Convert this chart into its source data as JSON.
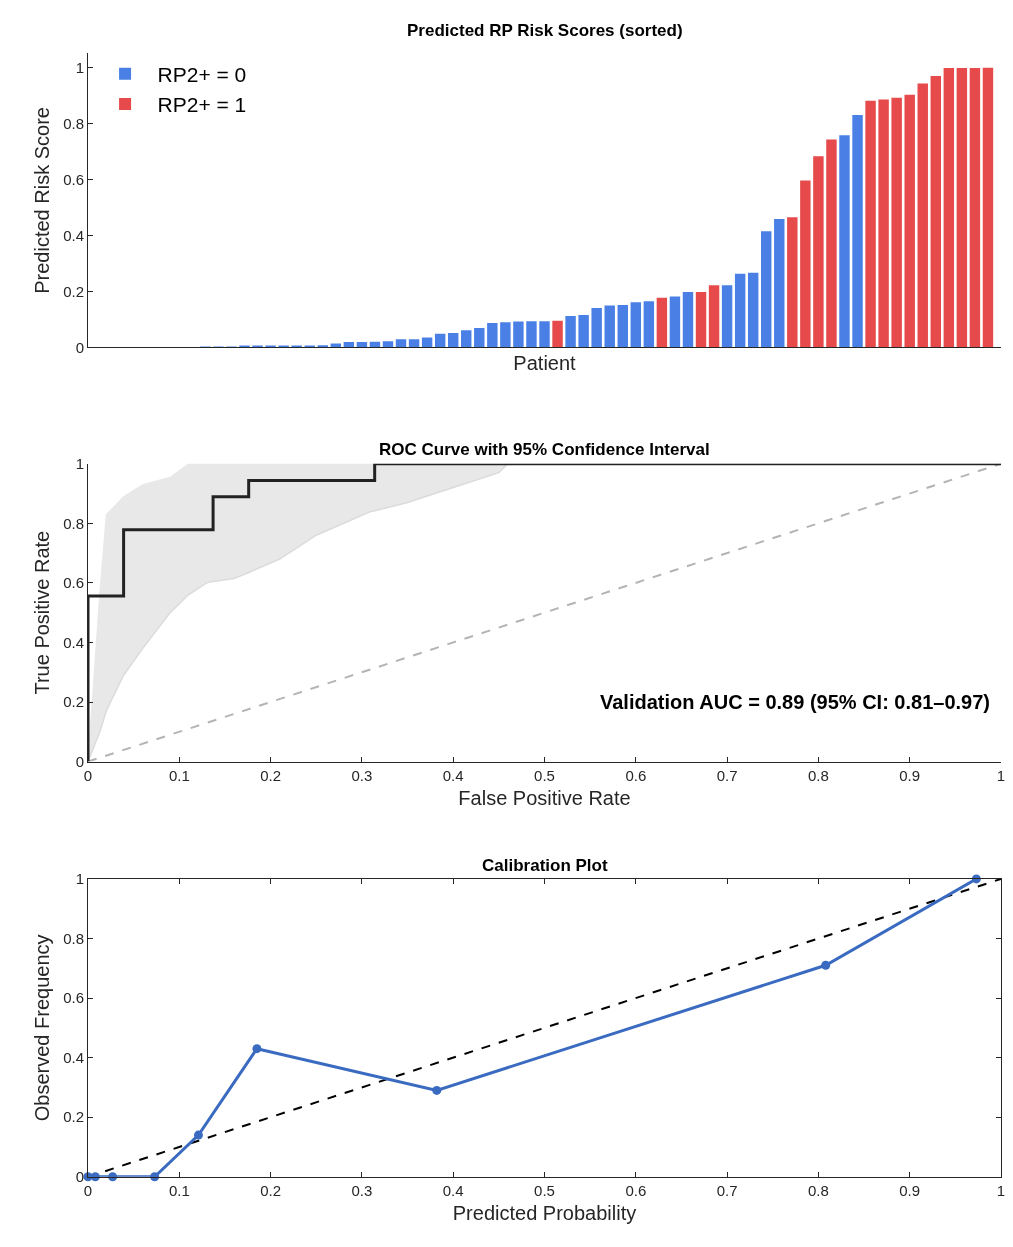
{
  "chart_data": [
    {
      "type": "bar",
      "title": "Predicted RP Risk Scores (sorted)",
      "xlabel": "Patient",
      "ylabel": "Predicted Risk Score",
      "categories": [
        null,
        null,
        null,
        null,
        null,
        null,
        null,
        null,
        null,
        null,
        null,
        null,
        null,
        null,
        null,
        null,
        null,
        null,
        null,
        null,
        null,
        null,
        null,
        null,
        null,
        null,
        null,
        null,
        null,
        null,
        null,
        null,
        null,
        null,
        null,
        null,
        null,
        null,
        null,
        null,
        null,
        null,
        null,
        null,
        null,
        null,
        null,
        null,
        null,
        null,
        null,
        null,
        null,
        null,
        null,
        null,
        null,
        null,
        null,
        null,
        null,
        null,
        null,
        null,
        null,
        null,
        null,
        null,
        null
      ],
      "series": [
        {
          "name": "RP2+ = 0",
          "color": "#4a80e6",
          "values": [
            0,
            0,
            0,
            0,
            0,
            0,
            0,
            0,
            0.002,
            0.003,
            0.003,
            0.004,
            0.004,
            0.005,
            0.005,
            0.005,
            0.006,
            0.008,
            0.014,
            0.019,
            0.019,
            0.02,
            0.022,
            0.029,
            0.029,
            0.035,
            0.049,
            0.051,
            0.061,
            0.069,
            0.087,
            0.09,
            0.092,
            0.093,
            0.093,
            null,
            0.112,
            0.116,
            0.141,
            0.15,
            0.151,
            0.161,
            0.165,
            null,
            0.182,
            0.198,
            null,
            null,
            0.222,
            0.263,
            0.267,
            0.415,
            0.459,
            null,
            null,
            null,
            null,
            0.758,
            0.83,
            null,
            null,
            null,
            null,
            null,
            null,
            null,
            null,
            null,
            null
          ]
        },
        {
          "name": "RP2+ = 1",
          "color": "#e64a4a",
          "values": [
            null,
            null,
            null,
            null,
            null,
            null,
            null,
            null,
            null,
            null,
            null,
            null,
            null,
            null,
            null,
            null,
            null,
            null,
            null,
            null,
            null,
            null,
            null,
            null,
            null,
            null,
            null,
            null,
            null,
            null,
            null,
            null,
            null,
            null,
            null,
            0.095,
            null,
            null,
            null,
            null,
            null,
            null,
            null,
            0.177,
            null,
            null,
            0.198,
            0.222,
            null,
            null,
            null,
            null,
            null,
            0.465,
            0.596,
            0.683,
            0.743,
            null,
            null,
            0.881,
            0.886,
            0.892,
            0.903,
            0.943,
            0.97,
            0.998,
            0.998,
            0.998,
            0.999
          ]
        }
      ],
      "ylim": [
        0,
        1.05
      ],
      "yticks": [
        0,
        0.2,
        0.4,
        0.6,
        0.8,
        1
      ],
      "tick_labels": "y",
      "legend": "top left",
      "grid": false
    },
    {
      "type": "line",
      "title": "ROC Curve with 95% Confidence Interval",
      "xlabel": "False Positive Rate",
      "ylabel": "True Positive Rate",
      "series": [
        {
          "color": "#b4b4b4",
          "line_style": "dashed",
          "x": [
            0,
            1
          ],
          "values": [
            0,
            1
          ]
        },
        {
          "color": "#222222",
          "line_style": "solid",
          "x": [
            0,
            0,
            0.013,
            0.02,
            0.039,
            0.039,
            0.06,
            0.09,
            0.11,
            0.13,
            0.137,
            0.137,
            0.16,
            0.176,
            0.176,
            0.21,
            0.25,
            0.31,
            0.314,
            0.314,
            0.35,
            0.39,
            0.45,
            0.46,
            1
          ],
          "values": [
            0,
            0.556,
            0.556,
            0.556,
            0.556,
            0.778,
            0.778,
            0.778,
            0.778,
            0.778,
            0.778,
            0.889,
            0.889,
            0.889,
            0.944,
            0.944,
            0.944,
            0.944,
            0.944,
            1,
            1,
            1,
            1,
            1,
            1
          ],
          "lower": [
            0,
            0,
            0.1,
            0.17,
            0.29,
            0.29,
            0.38,
            0.5,
            0.56,
            0.6,
            0.605,
            0.605,
            0.615,
            0.635,
            0.635,
            0.68,
            0.76,
            0.84,
            0.842,
            0.842,
            0.87,
            0.91,
            0.97,
            1,
            1
          ],
          "upper": [
            0,
            0,
            0.57,
            0.83,
            0.89,
            0.89,
            0.93,
            0.955,
            1,
            1,
            1,
            1,
            1,
            1,
            1,
            1,
            1,
            1,
            1,
            1,
            1,
            1,
            1,
            1,
            1
          ]
        }
      ],
      "annotations": [
        "Validation AUC = 0.89 (95% CI: 0.81–0.97)"
      ],
      "xlim": [
        0,
        1
      ],
      "ylim": [
        0,
        1
      ],
      "xticks": [
        0,
        0.1,
        0.2,
        0.3,
        0.4,
        0.5,
        0.6,
        0.7,
        0.8,
        0.9,
        1
      ],
      "yticks": [
        0,
        0.2,
        0.4,
        0.6,
        0.8,
        1
      ],
      "grid": false,
      "legend": false
    },
    {
      "type": "line",
      "title": "Calibration Plot",
      "xlabel": "Predicted Probability",
      "ylabel": "Observed Frequency",
      "series": [
        {
          "color": "#000000",
          "line_style": "dashed",
          "marker": "none",
          "x": [
            0,
            1
          ],
          "values": [
            0,
            1
          ]
        },
        {
          "color": "#3a6bc0",
          "line_style": "solid",
          "marker": "circle",
          "x": [
            0,
            0.008,
            0.027,
            0.073,
            0.121,
            0.185,
            0.382,
            0.808,
            0.973
          ],
          "values": [
            0,
            0,
            0,
            0,
            0.14,
            0.43,
            0.29,
            0.71,
            1
          ]
        }
      ],
      "xlim": [
        0,
        1
      ],
      "ylim": [
        0,
        1
      ],
      "xticks": [
        0,
        0.1,
        0.2,
        0.3,
        0.4,
        0.5,
        0.6,
        0.7,
        0.8,
        0.9,
        1
      ],
      "yticks": [
        0,
        0.2,
        0.4,
        0.6,
        0.8,
        1
      ],
      "grid": false,
      "legend": false
    }
  ]
}
